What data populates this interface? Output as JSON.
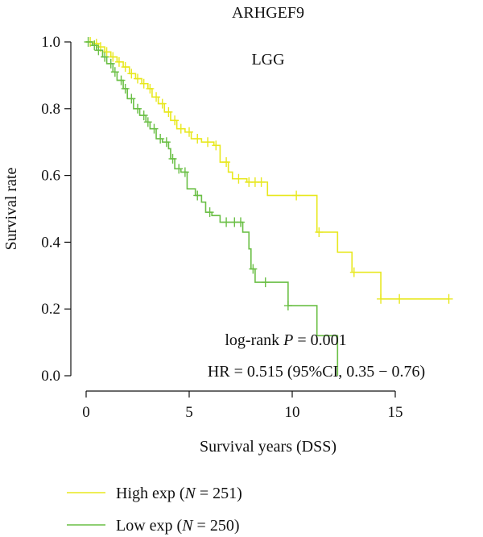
{
  "chart_data": {
    "type": "line",
    "title": "ARHGEF9",
    "panel_label": "LGG",
    "xlabel": "Survival years (DSS)",
    "ylabel": "Survival rate",
    "xlim": [
      0,
      17.5
    ],
    "ylim": [
      0,
      1.0
    ],
    "x_ticks": [
      0,
      5,
      10,
      15
    ],
    "y_ticks": [
      0.0,
      0.2,
      0.4,
      0.6,
      0.8,
      1.0
    ],
    "x_tick_labels": [
      "0",
      "5",
      "10",
      "15"
    ],
    "y_tick_labels": [
      "0.0",
      "0.2",
      "0.4",
      "0.6",
      "0.8",
      "1.0"
    ],
    "grid": false,
    "legend_position": "bottom-left",
    "annotations": {
      "logrank_prefix": "log-rank ",
      "logrank_p": "P",
      "logrank_suffix": " = 0.001",
      "hr": "HR = 0.515 (95%CI, 0.35 − 0.76)"
    },
    "series": [
      {
        "name": "High exp",
        "n_label": "N",
        "n_suffix": " = 251)",
        "color": "#e8e81e",
        "points": [
          [
            0,
            1.0
          ],
          [
            0.3,
            0.995
          ],
          [
            0.6,
            0.985
          ],
          [
            0.9,
            0.97
          ],
          [
            1.2,
            0.955
          ],
          [
            1.5,
            0.94
          ],
          [
            1.8,
            0.925
          ],
          [
            2.1,
            0.905
          ],
          [
            2.4,
            0.89
          ],
          [
            2.7,
            0.875
          ],
          [
            3.0,
            0.86
          ],
          [
            3.2,
            0.835
          ],
          [
            3.5,
            0.815
          ],
          [
            3.8,
            0.79
          ],
          [
            4.1,
            0.765
          ],
          [
            4.4,
            0.74
          ],
          [
            4.8,
            0.73
          ],
          [
            5.1,
            0.71
          ],
          [
            5.6,
            0.7
          ],
          [
            6.2,
            0.69
          ],
          [
            6.5,
            0.64
          ],
          [
            6.9,
            0.61
          ],
          [
            7.1,
            0.59
          ],
          [
            7.8,
            0.58
          ],
          [
            8.7,
            0.58
          ],
          [
            8.8,
            0.54
          ],
          [
            10.9,
            0.54
          ],
          [
            11.2,
            0.43
          ],
          [
            11.8,
            0.43
          ],
          [
            12.2,
            0.37
          ],
          [
            12.7,
            0.37
          ],
          [
            12.9,
            0.31
          ],
          [
            14.1,
            0.31
          ],
          [
            14.3,
            0.23
          ],
          [
            17.6,
            0.23
          ]
        ],
        "censor_x": [
          0.2,
          0.5,
          0.7,
          1.0,
          1.3,
          1.6,
          1.9,
          2.2,
          2.5,
          2.8,
          3.1,
          3.4,
          3.7,
          4.0,
          4.3,
          4.6,
          5.0,
          5.4,
          5.9,
          6.3,
          6.8,
          7.4,
          7.9,
          8.2,
          8.5,
          10.2,
          11.3,
          13.0,
          14.3,
          15.2,
          17.6
        ]
      },
      {
        "name": "Low exp",
        "n_label": "N",
        "n_suffix": " = 250)",
        "color": "#6abf45",
        "points": [
          [
            0,
            1.0
          ],
          [
            0.3,
            0.99
          ],
          [
            0.5,
            0.975
          ],
          [
            0.8,
            0.955
          ],
          [
            1.0,
            0.935
          ],
          [
            1.3,
            0.91
          ],
          [
            1.5,
            0.885
          ],
          [
            1.8,
            0.86
          ],
          [
            2.0,
            0.83
          ],
          [
            2.3,
            0.8
          ],
          [
            2.6,
            0.78
          ],
          [
            2.9,
            0.76
          ],
          [
            3.1,
            0.74
          ],
          [
            3.4,
            0.71
          ],
          [
            3.7,
            0.7
          ],
          [
            4.0,
            0.68
          ],
          [
            4.1,
            0.65
          ],
          [
            4.3,
            0.62
          ],
          [
            4.6,
            0.61
          ],
          [
            4.9,
            0.56
          ],
          [
            5.3,
            0.54
          ],
          [
            5.6,
            0.52
          ],
          [
            5.8,
            0.49
          ],
          [
            6.1,
            0.48
          ],
          [
            6.5,
            0.46
          ],
          [
            7.5,
            0.46
          ],
          [
            7.6,
            0.43
          ],
          [
            7.9,
            0.38
          ],
          [
            8.0,
            0.32
          ],
          [
            8.2,
            0.28
          ],
          [
            9.7,
            0.28
          ],
          [
            9.8,
            0.21
          ],
          [
            11.0,
            0.21
          ],
          [
            11.2,
            0.12
          ],
          [
            12.1,
            0.12
          ],
          [
            12.2,
            0.0
          ]
        ],
        "censor_x": [
          0.1,
          0.4,
          0.6,
          0.9,
          1.2,
          1.4,
          1.7,
          1.9,
          2.2,
          2.5,
          2.8,
          3.0,
          3.3,
          3.6,
          3.9,
          4.2,
          4.5,
          4.8,
          5.4,
          6.0,
          6.8,
          7.2,
          7.5,
          8.1,
          8.7,
          9.8
        ]
      }
    ]
  }
}
